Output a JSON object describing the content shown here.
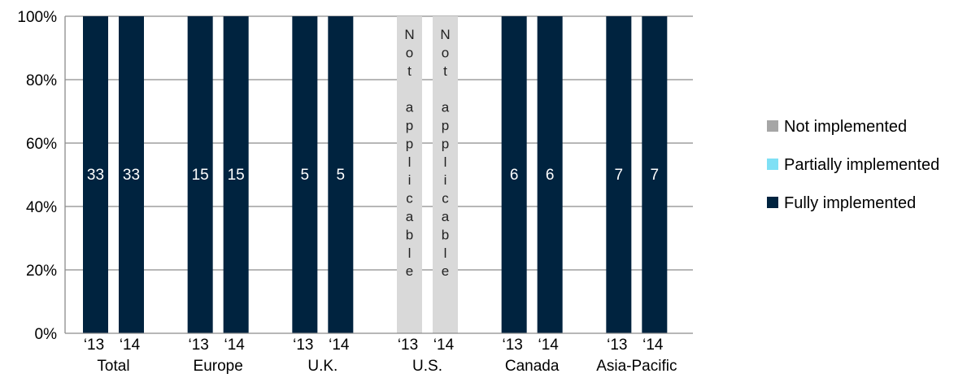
{
  "chart_data": {
    "type": "bar",
    "stacked": true,
    "percent": true,
    "groups": [
      "Total",
      "Europe",
      "U.K.",
      "U.S.",
      "Canada",
      "Asia-Pacific"
    ],
    "years": [
      "‘13",
      "‘14"
    ],
    "bars": [
      {
        "group": "Total",
        "year": "‘13",
        "not_implemented": 0,
        "partially_implemented": 0,
        "fully_implemented": 100,
        "label": "33"
      },
      {
        "group": "Total",
        "year": "‘14",
        "not_implemented": 0,
        "partially_implemented": 0,
        "fully_implemented": 100,
        "label": "33"
      },
      {
        "group": "Europe",
        "year": "‘13",
        "not_implemented": 0,
        "partially_implemented": 0,
        "fully_implemented": 100,
        "label": "15"
      },
      {
        "group": "Europe",
        "year": "‘14",
        "not_implemented": 0,
        "partially_implemented": 0,
        "fully_implemented": 100,
        "label": "15"
      },
      {
        "group": "U.K.",
        "year": "‘13",
        "not_implemented": 0,
        "partially_implemented": 0,
        "fully_implemented": 100,
        "label": "5"
      },
      {
        "group": "U.K.",
        "year": "‘14",
        "not_implemented": 0,
        "partially_implemented": 0,
        "fully_implemented": 100,
        "label": "5"
      },
      {
        "group": "U.S.",
        "year": "‘13",
        "not_applicable": true,
        "label": "Not applicable"
      },
      {
        "group": "U.S.",
        "year": "‘14",
        "not_applicable": true,
        "label": "Not applicable"
      },
      {
        "group": "Canada",
        "year": "‘13",
        "not_implemented": 0,
        "partially_implemented": 0,
        "fully_implemented": 100,
        "label": "6"
      },
      {
        "group": "Canada",
        "year": "‘14",
        "not_implemented": 0,
        "partially_implemented": 0,
        "fully_implemented": 100,
        "label": "6"
      },
      {
        "group": "Asia-Pacific",
        "year": "‘13",
        "not_implemented": 0,
        "partially_implemented": 0,
        "fully_implemented": 100,
        "label": "7"
      },
      {
        "group": "Asia-Pacific",
        "year": "‘14",
        "not_implemented": 0,
        "partially_implemented": 0,
        "fully_implemented": 100,
        "label": "7"
      }
    ],
    "y_ticks": [
      "0%",
      "20%",
      "40%",
      "60%",
      "80%",
      "100%"
    ],
    "ylim": [
      0,
      100
    ],
    "grid": true,
    "legend": {
      "position": "right",
      "items": [
        {
          "key": "not_implemented",
          "label": "Not implemented",
          "color": "#a6a6a6"
        },
        {
          "key": "partially_implemented",
          "label": "Partially implemented",
          "color": "#7fe0f5"
        },
        {
          "key": "fully_implemented",
          "label": "Fully implemented",
          "color": "#00233f"
        }
      ]
    },
    "colors": {
      "fully_implemented": "#00233f",
      "not_applicable_bar": "#d9d9d9",
      "grid": "#8c8c8c"
    },
    "title": "",
    "xlabel": "",
    "ylabel": ""
  }
}
